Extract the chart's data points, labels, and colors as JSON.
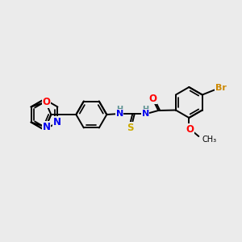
{
  "bg_color": "#ebebeb",
  "bond_width": 1.4,
  "atom_colors": {
    "N": "#0000ee",
    "O": "#ff0000",
    "S": "#ccaa00",
    "Br": "#cc8800",
    "C": "#000000",
    "H": "#5a9090"
  },
  "font_size": 7.5,
  "fig_size": [
    3.0,
    3.0
  ],
  "dpi": 100,
  "xlim": [
    0,
    300
  ],
  "ylim": [
    0,
    300
  ]
}
